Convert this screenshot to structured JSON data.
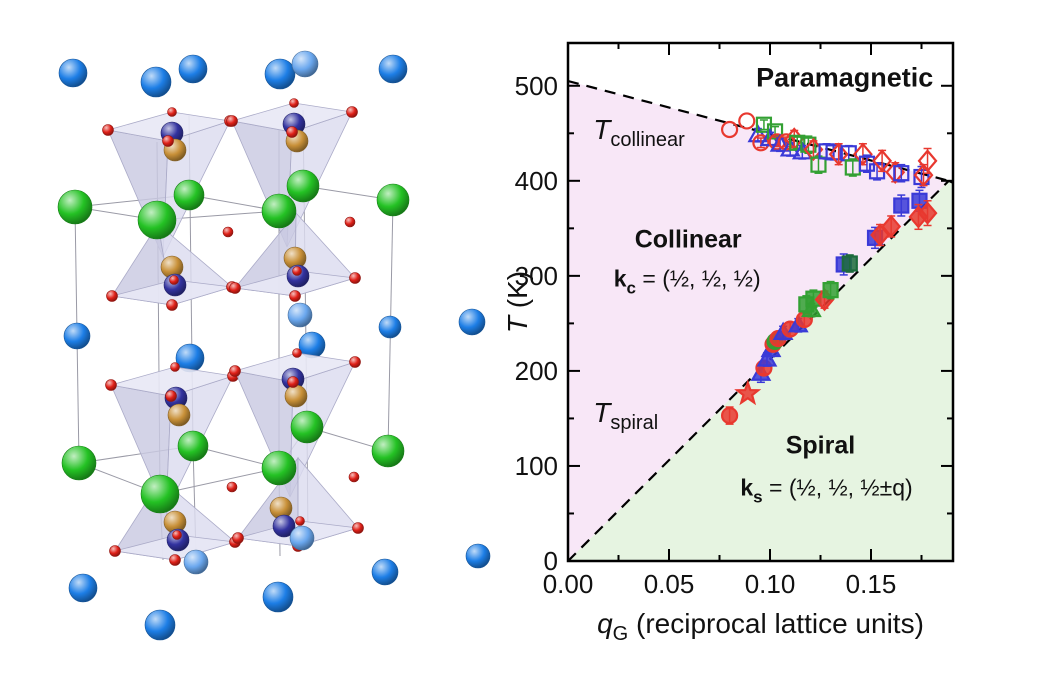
{
  "page": {
    "background": "#ffffff"
  },
  "crystal_panel": {
    "description": "perspective view of a layered crystal structure with corner-linked tetrahedra",
    "atom_colors": {
      "green_large": "#24c224",
      "blue_dark": "#1d7ee6",
      "blue_light": "#6aa7ee",
      "red_small": "#e02018",
      "navy": "#32329f",
      "gold": "#c89038",
      "polyhedron_face": "#e8e8f5",
      "polyhedron_side_dark": "#c9c9e2",
      "polyhedron_side_light": "#dcdcef",
      "polyhedron_edge": "#ababc8",
      "cell_line": "#9a9aa6"
    }
  },
  "chart_data": {
    "type": "scatter",
    "title": "",
    "xlabel_parts": {
      "symbol": "q",
      "subscript": "G",
      "rest": " (reciprocal lattice units)"
    },
    "ylabel_parts": {
      "symbol": "T",
      "rest": " (K)"
    },
    "xlim": [
      0,
      0.1906
    ],
    "ylim": [
      0,
      545
    ],
    "x_major_ticks": [
      0,
      0.05,
      0.1,
      0.15
    ],
    "x_tick_labels": [
      "0.00",
      "0.05",
      "0.10",
      "0.15"
    ],
    "x_minor_ticks": [
      0.025,
      0.075,
      0.125,
      0.175
    ],
    "y_major_ticks": [
      0,
      100,
      200,
      300,
      400,
      500
    ],
    "y_tick_labels": [
      "0",
      "100",
      "200",
      "300",
      "400",
      "500"
    ],
    "y_minor_ticks": [
      50,
      150,
      250,
      350,
      450
    ],
    "grid": false,
    "legend": "none",
    "regions": [
      {
        "name": "collinear-region",
        "color": "#f8e7f7",
        "polygon": [
          [
            0,
            0
          ],
          [
            0,
            505
          ],
          [
            0.1885,
            400
          ]
        ]
      },
      {
        "name": "spiral-region",
        "color": "#e6f4e1",
        "polygon": [
          [
            0,
            0
          ],
          [
            0.1885,
            400
          ],
          [
            0.1906,
            399
          ],
          [
            0.1906,
            0
          ]
        ]
      }
    ],
    "boundaries": [
      {
        "name": "T-collinear-line",
        "style": "dashed",
        "points": [
          [
            0,
            505
          ],
          [
            0.1885,
            400
          ]
        ]
      },
      {
        "name": "T-spiral-line",
        "style": "dashed",
        "points": [
          [
            0,
            0
          ],
          [
            0.1885,
            400
          ]
        ]
      },
      {
        "name": "merged-line",
        "style": "dashed",
        "points": [
          [
            0.1885,
            400
          ],
          [
            0.1906,
            398
          ]
        ]
      }
    ],
    "annotations": [
      {
        "id": "paramagnetic-label",
        "x": 0.137,
        "y": 499,
        "text": "Paramagnetic",
        "bold": true,
        "size": 27,
        "anchor": "middle"
      },
      {
        "id": "t-collinear-label",
        "x": 0.0125,
        "y": 444,
        "text": "T",
        "italic": true,
        "sub": "collinear",
        "size": 28,
        "anchor": "start"
      },
      {
        "id": "collinear-label",
        "x": 0.0595,
        "y": 330,
        "text": "Collinear",
        "bold": true,
        "size": 25,
        "anchor": "middle"
      },
      {
        "id": "kc-label",
        "x": 0.059,
        "y": 289,
        "text": "k",
        "bold": true,
        "sub": "c",
        "rest": " = (½, ½, ½)",
        "size": 23,
        "anchor": "middle"
      },
      {
        "id": "t-spiral-label",
        "x": 0.0125,
        "y": 146,
        "text": "T",
        "italic": true,
        "sub": "spiral",
        "size": 28,
        "anchor": "start"
      },
      {
        "id": "spiral-label",
        "x": 0.125,
        "y": 113,
        "text": "Spiral",
        "bold": true,
        "size": 25,
        "anchor": "middle"
      },
      {
        "id": "ks-label",
        "x": 0.128,
        "y": 69,
        "text": "k",
        "bold": true,
        "sub": "s",
        "rest": " = (½, ½, ½±q)",
        "size": 23,
        "anchor": "middle"
      }
    ],
    "marker_colors": {
      "red": "#e8382f",
      "blue": "#3a3ad7",
      "green": "#33a033",
      "darkgreen": "#1c6b3d"
    },
    "series": [
      {
        "name": "T_collinear (open symbols)",
        "fill": "open",
        "points": [
          [
            0.08,
            454,
            "circle",
            "red",
            0
          ],
          [
            0.0885,
            463,
            "circle",
            "red",
            0
          ],
          [
            0.094,
            448,
            "triangle",
            "blue",
            7
          ],
          [
            0.0955,
            440,
            "circle",
            "red",
            5
          ],
          [
            0.097,
            459,
            "square",
            "green",
            5
          ],
          [
            0.1,
            444,
            "triangle",
            "blue",
            7
          ],
          [
            0.1025,
            452,
            "square",
            "green",
            5
          ],
          [
            0.1035,
            441,
            "circle",
            "red",
            5
          ],
          [
            0.105,
            438,
            "triangle",
            "blue",
            7
          ],
          [
            0.108,
            441,
            "circle",
            "red",
            5
          ],
          [
            0.11,
            433,
            "triangle",
            "blue",
            7
          ],
          [
            0.112,
            444,
            "diamond",
            "red",
            9
          ],
          [
            0.1135,
            440,
            "square",
            "green",
            6
          ],
          [
            0.116,
            430,
            "triangle",
            "blue",
            7
          ],
          [
            0.119,
            438,
            "square",
            "green",
            9
          ],
          [
            0.1215,
            433,
            "diamond",
            "red",
            9
          ],
          [
            0.124,
            417,
            "square",
            "green",
            9
          ],
          [
            0.128,
            431,
            "square",
            "blue",
            8
          ],
          [
            0.1315,
            430,
            "square",
            "blue",
            8
          ],
          [
            0.134,
            428,
            "diamond",
            "red",
            11
          ],
          [
            0.139,
            429,
            "square",
            "blue",
            8
          ],
          [
            0.141,
            414,
            "square",
            "green",
            9
          ],
          [
            0.146,
            428,
            "diamond",
            "red",
            11
          ],
          [
            0.148,
            418,
            "square",
            "blue",
            9
          ],
          [
            0.153,
            410,
            "square",
            "blue",
            9
          ],
          [
            0.1555,
            421,
            "diamond",
            "red",
            11
          ],
          [
            0.162,
            409,
            "diamond",
            "red",
            10
          ],
          [
            0.165,
            408,
            "square",
            "blue",
            9
          ],
          [
            0.175,
            404,
            "square",
            "blue",
            11
          ],
          [
            0.176,
            406,
            "diamond",
            "red",
            11
          ],
          [
            0.178,
            421,
            "diamond",
            "red",
            13
          ]
        ]
      },
      {
        "name": "T_spiral (filled symbols)",
        "fill": "filled",
        "points": [
          [
            0.08,
            153,
            "circle",
            "red",
            9
          ],
          [
            0.089,
            176,
            "star",
            "red",
            0
          ],
          [
            0.0955,
            197,
            "triangle",
            "blue",
            9
          ],
          [
            0.097,
            203,
            "circle",
            "red",
            6
          ],
          [
            0.0985,
            212,
            "triangle",
            "blue",
            7
          ],
          [
            0.1005,
            222,
            "triangle",
            "blue",
            7
          ],
          [
            0.1015,
            228,
            "circle",
            "red",
            6
          ],
          [
            0.1025,
            231,
            "circle",
            "green",
            6
          ],
          [
            0.104,
            234,
            "circle",
            "red",
            6
          ],
          [
            0.1065,
            240,
            "triangle",
            "blue",
            7
          ],
          [
            0.11,
            244,
            "circle",
            "red",
            7
          ],
          [
            0.114,
            248,
            "triangle",
            "blue",
            7
          ],
          [
            0.117,
            254,
            "circle",
            "red",
            7
          ],
          [
            0.118,
            270,
            "square",
            "green",
            9
          ],
          [
            0.1205,
            264,
            "triangle",
            "green",
            7
          ],
          [
            0.1215,
            276,
            "square",
            "green",
            9
          ],
          [
            0.127,
            275,
            "diamond",
            "red",
            9
          ],
          [
            0.13,
            285,
            "square",
            "green",
            9
          ],
          [
            0.1365,
            312,
            "square",
            "blue",
            11
          ],
          [
            0.1395,
            313,
            "square",
            "darkgreen",
            9
          ],
          [
            0.152,
            340,
            "square",
            "blue",
            11
          ],
          [
            0.1545,
            343,
            "diamond",
            "red",
            11
          ],
          [
            0.16,
            352,
            "diamond",
            "red",
            11
          ],
          [
            0.165,
            374,
            "square",
            "blue",
            11
          ],
          [
            0.174,
            379,
            "square",
            "blue",
            11
          ],
          [
            0.1735,
            362,
            "diamond",
            "red",
            13
          ],
          [
            0.178,
            366,
            "diamond",
            "red",
            13
          ]
        ]
      }
    ]
  }
}
